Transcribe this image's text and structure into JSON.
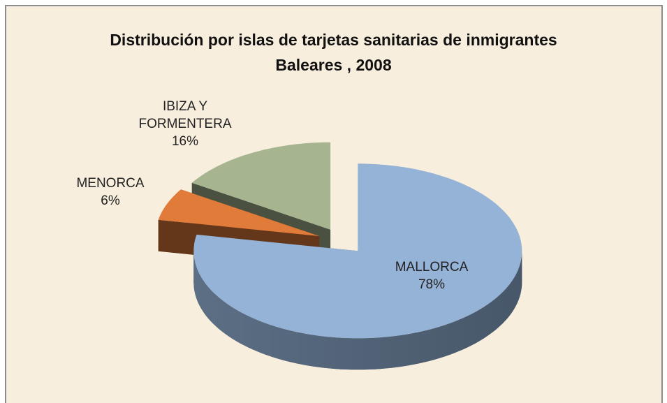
{
  "chart_data": {
    "type": "pie3d",
    "title": "Distribución por islas de tarjetas sanitarias de inmigrantes",
    "subtitle": "Baleares , 2008",
    "categories": [
      "MALLORCA",
      "MENORCA",
      "IBIZA Y FORMENTERA"
    ],
    "values": [
      78,
      6,
      16
    ],
    "value_labels": [
      "78%",
      "6%",
      "16%"
    ],
    "colors": [
      "#95b3d7",
      "#e07b39",
      "#a6b58f"
    ]
  }
}
